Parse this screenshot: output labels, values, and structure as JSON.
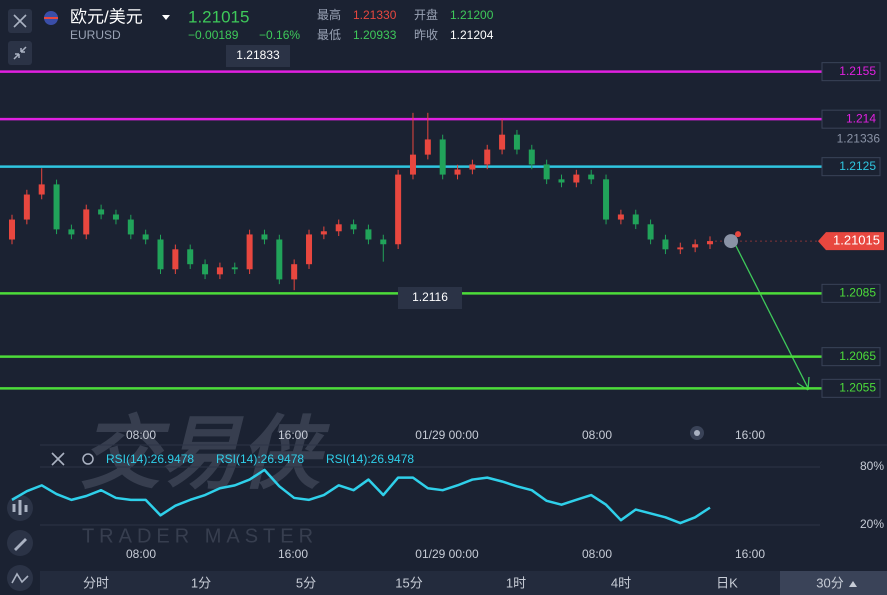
{
  "header": {
    "symbol_name": "欧元/美元",
    "symbol_code": "EURUSD",
    "price": "1.21015",
    "change": "−0.00189",
    "change_pct": "−0.16%",
    "high_label": "最高",
    "high": "1.21330",
    "open_label": "开盘",
    "open": "1.21200",
    "low_label": "最低",
    "low": "1.20933",
    "prev_close_label": "昨收",
    "prev_close": "1.21204"
  },
  "chart_data": {
    "type": "candlestick",
    "up_color": "#e8473f",
    "down_color": "#21a35a",
    "ylim": [
      1.2045,
      1.2165
    ],
    "open": [
      1.2102,
      1.21083,
      1.21162,
      1.21194,
      1.21052,
      1.21036,
      1.21115,
      1.21099,
      1.21083,
      1.21036,
      1.2102,
      1.20926,
      1.20989,
      1.20942,
      1.2091,
      1.20932,
      1.20926,
      1.21036,
      1.2102,
      1.20894,
      1.20942,
      1.21036,
      1.21046,
      1.21068,
      1.21052,
      1.2102,
      1.21005,
      1.21225,
      1.21288,
      1.21336,
      1.21225,
      1.21241,
      1.21257,
      1.21304,
      1.21351,
      1.21304,
      1.21257,
      1.2121,
      1.212,
      1.21225,
      1.2121,
      1.21083,
      1.21099,
      1.21068,
      1.2102,
      1.20989,
      1.20995,
      1.21005
    ],
    "high": [
      1.21098,
      1.21177,
      1.21245,
      1.21209,
      1.21067,
      1.2113,
      1.2113,
      1.21114,
      1.21098,
      1.21051,
      1.21035,
      1.21004,
      1.21004,
      1.20957,
      1.20947,
      1.20947,
      1.21051,
      1.21051,
      1.21035,
      1.20957,
      1.21051,
      1.21061,
      1.21083,
      1.21083,
      1.21067,
      1.21035,
      1.2124,
      1.2142,
      1.2142,
      1.21351,
      1.21256,
      1.21272,
      1.21319,
      1.214,
      1.21366,
      1.21319,
      1.21272,
      1.21225,
      1.2124,
      1.2124,
      1.21225,
      1.21114,
      1.21114,
      1.21083,
      1.21035,
      1.2101,
      1.2102,
      1.2103
    ],
    "low": [
      1.21005,
      1.21068,
      1.21147,
      1.21037,
      1.21021,
      1.21021,
      1.21084,
      1.21068,
      1.21021,
      1.21005,
      1.20911,
      1.20911,
      1.20927,
      1.20895,
      1.20895,
      1.20911,
      1.20911,
      1.21005,
      1.20879,
      1.2086,
      1.20927,
      1.21021,
      1.21031,
      1.21037,
      1.21005,
      1.2095,
      1.2099,
      1.2121,
      1.21273,
      1.2121,
      1.2121,
      1.21226,
      1.21242,
      1.21289,
      1.21289,
      1.21242,
      1.21195,
      1.21185,
      1.21185,
      1.21195,
      1.21068,
      1.21068,
      1.21053,
      1.21005,
      1.20974,
      1.20974,
      1.2098,
      1.2099
    ],
    "close": [
      1.21083,
      1.21162,
      1.21194,
      1.21052,
      1.21036,
      1.21115,
      1.21099,
      1.21083,
      1.21036,
      1.2102,
      1.20926,
      1.20989,
      1.20942,
      1.2091,
      1.20932,
      1.20926,
      1.21036,
      1.2102,
      1.20894,
      1.20942,
      1.21036,
      1.21046,
      1.21068,
      1.21052,
      1.2102,
      1.21005,
      1.21225,
      1.21288,
      1.21336,
      1.21225,
      1.21241,
      1.21257,
      1.21304,
      1.21351,
      1.21304,
      1.21257,
      1.2121,
      1.212,
      1.21225,
      1.2121,
      1.21083,
      1.21099,
      1.21068,
      1.2102,
      1.20989,
      1.20995,
      1.21005,
      1.21015
    ],
    "levels": [
      {
        "value": 1.2155,
        "color": "#e020e0"
      },
      {
        "value": 1.214,
        "color": "#e020e0"
      },
      {
        "value": 1.2125,
        "color": "#2fc6e0"
      },
      {
        "value": 1.2085,
        "color": "#4cdc3a"
      },
      {
        "value": 1.2065,
        "color": "#4cdc3a"
      },
      {
        "value": 1.2055,
        "color": "#4cdc3a"
      }
    ],
    "high_marker": 1.21336,
    "last": 1.21015,
    "crosshair_labels": [
      1.21833,
      1.2116
    ],
    "time_labels": [
      "08:00",
      "16:00",
      "01/29 00:00",
      "08:00",
      "16:00"
    ],
    "rsi": {
      "labels": [
        "RSI(14):26.9478",
        "RSI(14):26.9478",
        "RSI(14):26.9478"
      ],
      "color": "#2fd0ea",
      "ylim": [
        10,
        90
      ],
      "yticks": [
        {
          "value": 80,
          "label": "80%"
        },
        {
          "value": 20,
          "label": "20%"
        }
      ],
      "values": [
        46,
        55,
        61,
        52,
        46,
        50,
        56,
        48,
        46,
        46,
        30,
        40,
        46,
        51,
        58,
        61,
        67,
        77,
        60,
        48,
        46,
        51,
        61,
        56,
        67,
        51,
        69,
        69,
        58,
        56,
        61,
        67,
        69,
        65,
        60,
        56,
        45,
        41,
        46,
        51,
        41,
        25,
        36,
        32,
        28,
        22,
        28,
        38
      ]
    }
  },
  "watermark": {
    "logo": "交易侠",
    "text": "TRADER MASTER"
  },
  "tabs": [
    "分时",
    "1分",
    "5分",
    "15分",
    "1时",
    "4时",
    "日K",
    "30分"
  ]
}
